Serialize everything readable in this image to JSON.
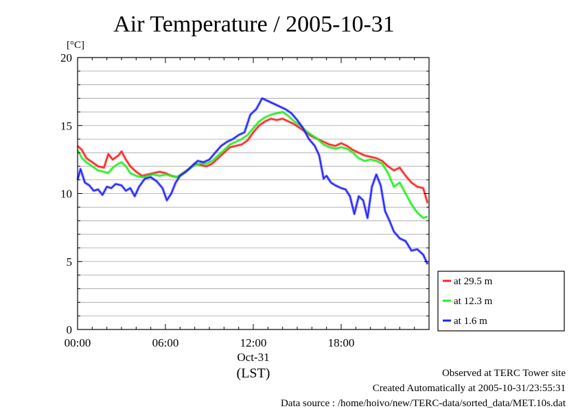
{
  "chart_data": {
    "type": "line",
    "title": "Air Temperature / 2005-10-31",
    "ylabel": "[°C]",
    "xlabel_date": "Oct-31",
    "xlabel_tz": "(LST)",
    "x_unit": "hours",
    "xlim": [
      0,
      24
    ],
    "ylim": [
      0,
      20
    ],
    "y_ticks": [
      "0",
      "5",
      "10",
      "15",
      "20"
    ],
    "x_ticks": [
      {
        "hour": 0,
        "label": "00:00"
      },
      {
        "hour": 6,
        "label": "06:00"
      },
      {
        "hour": 12,
        "label": "12:00"
      },
      {
        "hour": 18,
        "label": "18:00"
      }
    ],
    "grid": true,
    "legend_position": "right",
    "series": [
      {
        "name": "at 29.5 m",
        "color": "#ff2020",
        "x": [
          0,
          0.3,
          0.6,
          1,
          1.4,
          1.8,
          2.1,
          2.4,
          2.8,
          3,
          3.3,
          3.6,
          4,
          4.4,
          4.8,
          5.2,
          5.6,
          6,
          6.4,
          6.8,
          7.2,
          7.6,
          8,
          8.4,
          8.8,
          9.2,
          9.6,
          10,
          10.4,
          10.8,
          11.2,
          11.6,
          12,
          12.4,
          12.8,
          13.2,
          13.6,
          14,
          14.4,
          14.8,
          15.2,
          15.6,
          16,
          16.4,
          16.8,
          17.2,
          17.6,
          18,
          18.4,
          18.8,
          19.2,
          19.6,
          20,
          20.4,
          20.8,
          21.2,
          21.6,
          22,
          22.4,
          22.8,
          23.2,
          23.6,
          23.9
        ],
        "values": [
          13.5,
          13.2,
          12.6,
          12.3,
          12,
          11.9,
          12.9,
          12.5,
          12.8,
          13.1,
          12.5,
          12,
          11.6,
          11.3,
          11.4,
          11.5,
          11.6,
          11.5,
          11.3,
          11.2,
          11.5,
          11.8,
          12.2,
          12.1,
          12.0,
          12.2,
          12.6,
          13.0,
          13.4,
          13.5,
          13.6,
          13.9,
          14.5,
          15.0,
          15.3,
          15.5,
          15.4,
          15.5,
          15.3,
          15.1,
          14.8,
          14.5,
          14.2,
          14.0,
          13.8,
          13.6,
          13.5,
          13.7,
          13.5,
          13.2,
          13.0,
          12.8,
          12.7,
          12.6,
          12.4,
          12.0,
          11.7,
          11.9,
          11.3,
          10.8,
          10.5,
          10.4,
          9.3
        ]
      },
      {
        "name": "at 12.3 m",
        "color": "#20f020",
        "x": [
          0,
          0.3,
          0.6,
          1,
          1.4,
          1.8,
          2.1,
          2.4,
          2.8,
          3,
          3.3,
          3.6,
          4,
          4.4,
          4.8,
          5.2,
          5.6,
          6,
          6.4,
          6.8,
          7.2,
          7.6,
          8,
          8.4,
          8.8,
          9.2,
          9.6,
          10,
          10.4,
          10.8,
          11.2,
          11.6,
          12,
          12.4,
          12.8,
          13.2,
          13.6,
          14,
          14.4,
          14.8,
          15.2,
          15.6,
          16,
          16.4,
          16.8,
          17.2,
          17.6,
          18,
          18.4,
          18.8,
          19.2,
          19.6,
          20,
          20.4,
          20.8,
          21.2,
          21.6,
          22,
          22.4,
          22.8,
          23.2,
          23.6,
          23.9
        ],
        "values": [
          13.2,
          12.6,
          12.3,
          12.0,
          11.7,
          11.6,
          11.5,
          11.9,
          12.2,
          12.3,
          12.0,
          11.5,
          11.3,
          11.2,
          11.3,
          11.4,
          11.3,
          11.4,
          11.3,
          11.2,
          11.5,
          11.8,
          12.1,
          12.2,
          12.2,
          12.4,
          12.8,
          13.2,
          13.6,
          13.8,
          14.0,
          14.3,
          14.8,
          15.3,
          15.6,
          15.8,
          15.9,
          16.0,
          15.7,
          15.3,
          15.0,
          14.6,
          14.3,
          14.0,
          13.6,
          13.4,
          13.3,
          13.4,
          13.3,
          13.0,
          12.6,
          12.4,
          12.5,
          12.4,
          12.2,
          11.5,
          10.5,
          10.8,
          10.0,
          9.2,
          8.6,
          8.2,
          8.3
        ]
      },
      {
        "name": "at 1.6 m",
        "color": "#2020ff",
        "x": [
          0,
          0.2,
          0.5,
          0.8,
          1.1,
          1.4,
          1.7,
          2.0,
          2.3,
          2.6,
          3.0,
          3.3,
          3.6,
          3.9,
          4.2,
          4.6,
          5.0,
          5.4,
          5.8,
          6.1,
          6.4,
          6.7,
          7.0,
          7.4,
          7.8,
          8.2,
          8.6,
          9.0,
          9.4,
          9.8,
          10.2,
          10.6,
          11.0,
          11.4,
          11.8,
          12.2,
          12.6,
          13.0,
          13.4,
          13.8,
          14.2,
          14.6,
          15.0,
          15.4,
          15.8,
          16.2,
          16.5,
          16.8,
          17.0,
          17.3,
          17.6,
          18.0,
          18.3,
          18.6,
          18.9,
          19.2,
          19.5,
          19.8,
          20.1,
          20.4,
          20.7,
          21.0,
          21.3,
          21.6,
          22.0,
          22.4,
          22.8,
          23.2,
          23.6,
          23.9
        ],
        "values": [
          11.0,
          11.8,
          10.8,
          10.6,
          10.2,
          10.3,
          9.9,
          10.5,
          10.4,
          10.7,
          10.6,
          10.2,
          10.4,
          9.8,
          10.5,
          11.1,
          11.2,
          10.9,
          10.4,
          9.5,
          10.0,
          10.8,
          11.3,
          11.6,
          12.0,
          12.4,
          12.3,
          12.5,
          13.0,
          13.5,
          13.8,
          14.0,
          14.3,
          14.5,
          15.8,
          16.2,
          17.0,
          16.8,
          16.6,
          16.4,
          16.2,
          15.9,
          15.4,
          14.8,
          14.0,
          13.5,
          12.8,
          11.1,
          11.3,
          10.8,
          10.6,
          10.4,
          10.3,
          9.8,
          8.5,
          9.8,
          9.5,
          8.2,
          10.5,
          11.4,
          10.6,
          8.7,
          8.0,
          7.2,
          6.7,
          6.5,
          5.8,
          5.9,
          5.5,
          4.8
        ]
      }
    ],
    "footer": [
      "Observed at TERC Tower site",
      "Created Automatically at 2005-10-31/23:55:31",
      "Data source : /home/hoivo/new/TERC-data/sorted_data/MET.10s.dat"
    ]
  }
}
